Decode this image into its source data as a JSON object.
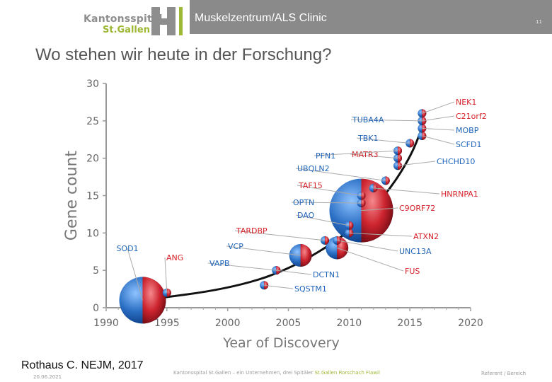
{
  "header": {
    "logo_line1": "Kantonsspital",
    "logo_line2": "St.Gallen",
    "clinic": "Muskelzentrum/ALS Clinic",
    "page_number": "11"
  },
  "slide_title": "Wo stehen wir heute in der Forschung?",
  "citation": "Rothaus C. NEJM, 2017",
  "footer": {
    "date": "20.06.2021",
    "org_prefix": "Kantonsspital St.Gallen – ein Unternehmen, drei Spitäler",
    "org_sites": "St.Gallen  Rorschach  Flawil",
    "presenter": "Referent / Bereich"
  },
  "colors": {
    "blue": "#2b6fc4",
    "red": "#d62128",
    "label_blue": "#1f64b8",
    "label_red": "#d62128",
    "header_gray": "#8a8a8a",
    "brand_green": "#9db834"
  },
  "chart_data": {
    "type": "scatter",
    "title": "",
    "xlabel": "Year of Discovery",
    "ylabel": "Gene count",
    "xlim": [
      1990,
      2020
    ],
    "ylim": [
      0,
      30
    ],
    "xticks": [
      "1990",
      "1995",
      "2000",
      "2005",
      "2010",
      "2015",
      "2020"
    ],
    "yticks": [
      "0",
      "5",
      "10",
      "15",
      "20",
      "25",
      "30"
    ],
    "trend_curve": [
      [
        1993,
        1
      ],
      [
        2000,
        2.5
      ],
      [
        2005,
        5
      ],
      [
        2010,
        10
      ],
      [
        2013,
        15
      ],
      [
        2015,
        20
      ],
      [
        2016,
        24
      ]
    ],
    "points": [
      {
        "gene": "SOD1",
        "year": 1993,
        "count": 1,
        "size": "xlarge",
        "label_color": "blue"
      },
      {
        "gene": "ANG",
        "year": 1995,
        "count": 2,
        "size": "small",
        "label_color": "red"
      },
      {
        "gene": "SQSTM1",
        "year": 2003,
        "count": 3,
        "size": "small",
        "label_color": "blue"
      },
      {
        "gene": "VAPB",
        "year": 2004,
        "count": 5,
        "size": "small",
        "label_color": "blue"
      },
      {
        "gene": "DCTN1",
        "year": 2004,
        "count": 5,
        "size": "small",
        "label_color": "blue"
      },
      {
        "gene": "VCP",
        "year": 2006,
        "count": 7,
        "size": "medium",
        "label_color": "blue"
      },
      {
        "gene": "FUS",
        "year": 2009,
        "count": 8,
        "size": "medium",
        "label_color": "red"
      },
      {
        "gene": "TARDBP",
        "year": 2008,
        "count": 9,
        "size": "small",
        "label_color": "red"
      },
      {
        "gene": "UNC13A",
        "year": 2009,
        "count": 9,
        "size": "small",
        "label_color": "blue"
      },
      {
        "gene": "ATXN2",
        "year": 2010,
        "count": 10,
        "size": "small",
        "label_color": "red"
      },
      {
        "gene": "DAO",
        "year": 2010,
        "count": 11,
        "size": "small",
        "label_color": "blue"
      },
      {
        "gene": "C9ORF72",
        "year": 2011,
        "count": 13,
        "size": "large",
        "label_color": "red"
      },
      {
        "gene": "OPTN",
        "year": 2011,
        "count": 14,
        "size": "small",
        "label_color": "blue"
      },
      {
        "gene": "TAF15",
        "year": 2011,
        "count": 15,
        "size": "small",
        "label_color": "red"
      },
      {
        "gene": "HNRNPA1",
        "year": 2012,
        "count": 16,
        "size": "small",
        "label_color": "red"
      },
      {
        "gene": "UBQLN2",
        "year": 2013,
        "count": 17,
        "size": "small",
        "label_color": "blue"
      },
      {
        "gene": "CHCHD10",
        "year": 2014,
        "count": 19,
        "size": "small",
        "label_color": "blue"
      },
      {
        "gene": "MATR3",
        "year": 2014,
        "count": 20,
        "size": "small",
        "label_color": "red"
      },
      {
        "gene": "PFN1",
        "year": 2014,
        "count": 21,
        "size": "small",
        "label_color": "blue"
      },
      {
        "gene": "TBK1",
        "year": 2015,
        "count": 22,
        "size": "small",
        "label_color": "blue"
      },
      {
        "gene": "SCFD1",
        "year": 2016,
        "count": 23,
        "size": "small",
        "label_color": "blue"
      },
      {
        "gene": "MOBP",
        "year": 2016,
        "count": 24,
        "size": "small",
        "label_color": "blue"
      },
      {
        "gene": "C21orf2",
        "year": 2016,
        "count": 25,
        "size": "small",
        "label_color": "red"
      },
      {
        "gene": "TUBA4A",
        "year": 2016,
        "count": 25,
        "size": "small",
        "label_color": "blue"
      },
      {
        "gene": "NEK1",
        "year": 2016,
        "count": 26,
        "size": "small",
        "label_color": "red"
      }
    ]
  }
}
